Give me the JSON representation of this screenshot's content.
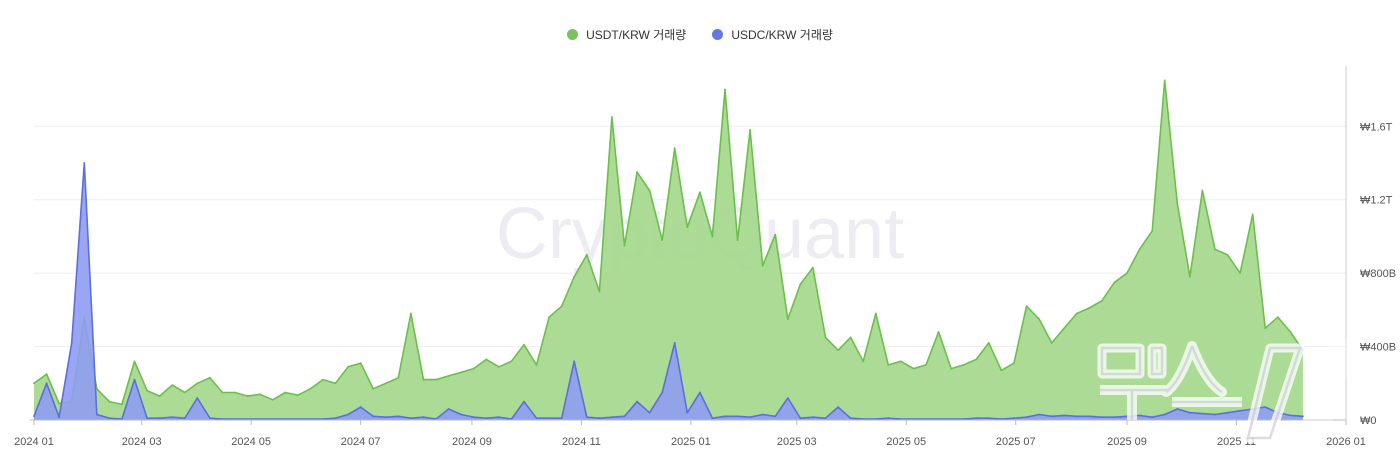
{
  "legend": {
    "usdt_label": "USDT/KRW 거래량",
    "usdc_label": "USDC/KRW 거래량"
  },
  "watermark": "CryptoQuant",
  "logo_text": "뉴스1",
  "colors": {
    "usdt_line": "#6cbf4b",
    "usdt_fill": "#a7d98f",
    "usdc_line": "#5b6fe0",
    "usdc_fill": "#8f9cf0",
    "grid": "#eeeeee",
    "axis": "#cccccc"
  },
  "chart_data": {
    "type": "area",
    "x": [
      "2024-01-01",
      "2024-01-08",
      "2024-01-15",
      "2024-01-22",
      "2024-01-29",
      "2024-02-05",
      "2024-02-12",
      "2024-02-19",
      "2024-02-26",
      "2024-03-04",
      "2024-03-11",
      "2024-03-18",
      "2024-03-25",
      "2024-04-01",
      "2024-04-08",
      "2024-04-15",
      "2024-04-22",
      "2024-04-29",
      "2024-05-06",
      "2024-05-13",
      "2024-05-20",
      "2024-05-27",
      "2024-06-03",
      "2024-06-10",
      "2024-06-17",
      "2024-06-24",
      "2024-07-01",
      "2024-07-08",
      "2024-07-15",
      "2024-07-22",
      "2024-07-29",
      "2024-08-05",
      "2024-08-12",
      "2024-08-19",
      "2024-08-26",
      "2024-09-02",
      "2024-09-09",
      "2024-09-16",
      "2024-09-23",
      "2024-09-30",
      "2024-10-07",
      "2024-10-14",
      "2024-10-21",
      "2024-10-28",
      "2024-11-04",
      "2024-11-11",
      "2024-11-18",
      "2024-11-25",
      "2024-12-02",
      "2024-12-09",
      "2024-12-16",
      "2024-12-23",
      "2024-12-30",
      "2025-01-06",
      "2025-01-13",
      "2025-01-20",
      "2025-01-27",
      "2025-02-03",
      "2025-02-10",
      "2025-02-17",
      "2025-02-24",
      "2025-03-03",
      "2025-03-10",
      "2025-03-17",
      "2025-03-24",
      "2025-03-31",
      "2025-04-07",
      "2025-04-14",
      "2025-04-21",
      "2025-04-28",
      "2025-05-05",
      "2025-05-12",
      "2025-05-19",
      "2025-05-26",
      "2025-06-02",
      "2025-06-09",
      "2025-06-16",
      "2025-06-23",
      "2025-06-30",
      "2025-07-07",
      "2025-07-14",
      "2025-07-21",
      "2025-07-28",
      "2025-08-04",
      "2025-08-11",
      "2025-08-18",
      "2025-08-25",
      "2025-09-01",
      "2025-09-08",
      "2025-09-15",
      "2025-09-22",
      "2025-09-29",
      "2025-10-06",
      "2025-10-13",
      "2025-10-20",
      "2025-10-27",
      "2025-11-03",
      "2025-11-10",
      "2025-11-17",
      "2025-11-24",
      "2025-12-01",
      "2025-12-08"
    ],
    "series": [
      {
        "name": "USDT/KRW 거래량",
        "values": [
          200,
          250,
          90,
          100,
          560,
          170,
          100,
          85,
          320,
          160,
          130,
          190,
          150,
          200,
          230,
          150,
          150,
          130,
          140,
          110,
          150,
          135,
          170,
          220,
          200,
          290,
          310,
          170,
          200,
          230,
          580,
          220,
          220,
          240,
          260,
          280,
          330,
          290,
          320,
          410,
          300,
          560,
          620,
          780,
          900,
          700,
          1650,
          950,
          1350,
          1250,
          980,
          1480,
          1050,
          1240,
          1000,
          1800,
          980,
          1580,
          840,
          1010,
          550,
          740,
          830,
          450,
          380,
          450,
          320,
          580,
          300,
          320,
          280,
          300,
          480,
          280,
          300,
          330,
          420,
          270,
          310,
          620,
          550,
          420,
          500,
          580,
          610,
          650,
          750,
          800,
          930,
          1030,
          1850,
          1180,
          780,
          1250,
          930,
          900,
          800,
          1120,
          500,
          560,
          480,
          380
        ],
        "color": "#6cbf4b"
      },
      {
        "name": "USDC/KRW 거래량",
        "values": [
          20,
          200,
          15,
          420,
          1400,
          30,
          10,
          5,
          220,
          10,
          10,
          15,
          10,
          120,
          10,
          5,
          5,
          5,
          5,
          5,
          5,
          5,
          5,
          5,
          10,
          30,
          70,
          20,
          15,
          20,
          10,
          15,
          5,
          60,
          30,
          15,
          10,
          15,
          5,
          100,
          10,
          10,
          10,
          320,
          15,
          10,
          15,
          20,
          100,
          40,
          150,
          420,
          40,
          150,
          10,
          20,
          20,
          15,
          30,
          20,
          120,
          10,
          15,
          10,
          70,
          10,
          5,
          5,
          10,
          5,
          5,
          5,
          5,
          5,
          5,
          10,
          10,
          5,
          10,
          15,
          30,
          20,
          25,
          20,
          20,
          15,
          15,
          20,
          25,
          15,
          30,
          60,
          40,
          35,
          30,
          40,
          50,
          60,
          70,
          40,
          25,
          20
        ],
        "color": "#5b6fe0"
      }
    ],
    "yticks": [
      "₩0",
      "₩400B",
      "₩800B",
      "₩1.2T",
      "₩1.6T"
    ],
    "ytick_values": [
      0,
      400,
      800,
      1200,
      1600
    ],
    "xticks": [
      "2024 01",
      "2024 03",
      "2024 05",
      "2024 07",
      "2024 09",
      "2024 11",
      "2025 01",
      "2025 03",
      "2025 05",
      "2025 07",
      "2025 09",
      "2025 11",
      "2026 01"
    ],
    "ylim": [
      0,
      1950
    ],
    "y_unit": "B KRW",
    "grid": true,
    "legend_position": "top-center"
  }
}
